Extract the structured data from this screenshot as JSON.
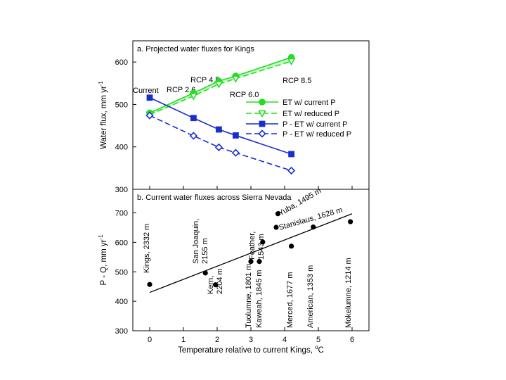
{
  "chart_data": [
    {
      "type": "line",
      "title": "a. Projected water fluxes for Kings",
      "ylabel": "Water flux, mm yr⁻¹",
      "ylabel_main": "Water flux, mm yr",
      "ylabel_sup": "-1",
      "ylim": [
        300,
        650
      ],
      "yticks": [
        "300",
        "400",
        "500",
        "600"
      ],
      "xlim": [
        -0.5,
        6.5
      ],
      "x_points": [
        0,
        1.3,
        2.05,
        2.55,
        4.2
      ],
      "scenario_annotations": [
        "Current",
        "RCP 2.6",
        "RCP 4.5",
        "RCP 6.0",
        "RCP 8.5"
      ],
      "legend_position": "right",
      "series": [
        {
          "name": "ET w/ current P",
          "color": "#22dd22",
          "marker": "circle",
          "filled": true,
          "dash": false,
          "values": [
            480,
            527,
            555,
            567,
            611
          ]
        },
        {
          "name": "ET w/ reduced P",
          "color": "#22dd22",
          "marker": "triangle-down",
          "filled": false,
          "dash": true,
          "values": [
            476,
            520,
            548,
            561,
            602
          ]
        },
        {
          "name": "P - ET w/ current P",
          "color": "#1a2ecc",
          "marker": "square",
          "filled": true,
          "dash": false,
          "values": [
            516,
            468,
            441,
            427,
            383
          ]
        },
        {
          "name": "P - ET w/ reduced P",
          "color": "#1a2ecc",
          "marker": "diamond",
          "filled": false,
          "dash": true,
          "values": [
            474,
            426,
            399,
            386,
            344
          ]
        }
      ]
    },
    {
      "type": "scatter",
      "title": "b. Current water fluxes across Sierra Nevada",
      "xlabel": "Temperature relative to current Kings, °C",
      "xlabel_main": "Temperature relative to current Kings, ",
      "xlabel_sup": "o",
      "xlabel_unit": "C",
      "ylabel": "P - Q, mm yr⁻¹",
      "ylabel_main": "P - Q, mm yr",
      "ylabel_sup": "-1",
      "xlim": [
        -0.5,
        6.5
      ],
      "ylim": [
        300,
        780
      ],
      "xticks": [
        "0",
        "1",
        "2",
        "3",
        "4",
        "5",
        "6"
      ],
      "yticks": [
        "300",
        "400",
        "500",
        "600",
        "700"
      ],
      "trendline": {
        "x": [
          0,
          6
        ],
        "y": [
          430,
          697
        ]
      },
      "points": [
        {
          "x": 0.0,
          "y": 457,
          "label": [
            "Kings, 2332 m"
          ]
        },
        {
          "x": 1.65,
          "y": 496,
          "label": [
            "San Joaquin,",
            "2155 m"
          ]
        },
        {
          "x": 1.95,
          "y": 456,
          "label": [
            "Kern,",
            "2204 m"
          ]
        },
        {
          "x": 3.0,
          "y": 535,
          "label": [
            "Tuolumne, 1801 m"
          ]
        },
        {
          "x": 3.25,
          "y": 535,
          "label": [
            "Kaweah, 1845 m"
          ]
        },
        {
          "x": 3.35,
          "y": 601,
          "label": [
            "Feather,",
            "1543 m"
          ]
        },
        {
          "x": 3.8,
          "y": 697,
          "label": [
            "Yuba, 1495 m"
          ]
        },
        {
          "x": 3.75,
          "y": 651,
          "label": [
            "Stanislaus, 1628 m"
          ]
        },
        {
          "x": 4.2,
          "y": 587,
          "label": [
            "Merced, 1677 m"
          ]
        },
        {
          "x": 4.85,
          "y": 652,
          "label": [
            "American, 1353 m"
          ]
        },
        {
          "x": 5.95,
          "y": 670,
          "label": [
            "Mokelumne, 1214 m"
          ]
        }
      ]
    }
  ]
}
